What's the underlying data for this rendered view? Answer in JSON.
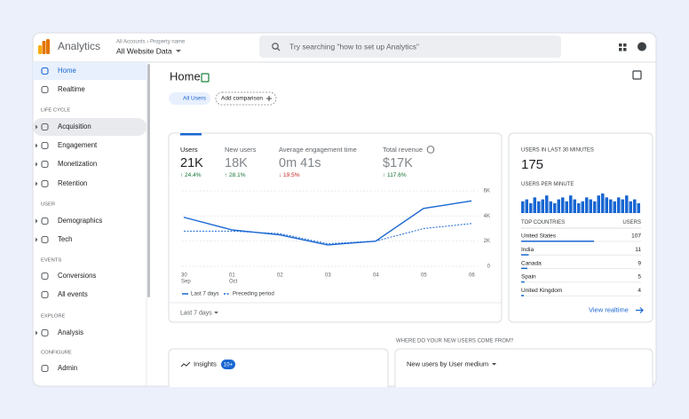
{
  "header": {
    "product": "Analytics",
    "breadcrumb": "All Accounts › Property name",
    "property": "All Website Data",
    "search_placeholder": "Try searching \"how to set up Analytics\""
  },
  "nav": [
    {
      "label": "Home"
    },
    {
      "label": "Realtime"
    },
    {
      "heading": "LIFE CYCLE"
    },
    {
      "label": "Acquisition",
      "expand": true
    },
    {
      "label": "Engagement",
      "expand": true
    },
    {
      "label": "Monetization",
      "expand": true
    },
    {
      "label": "Retention",
      "expand": true
    },
    {
      "heading": "USER"
    },
    {
      "label": "Demographics",
      "expand": true
    },
    {
      "label": "Tech",
      "expand": true
    },
    {
      "heading": "EVENTS"
    },
    {
      "label": "Conversions"
    },
    {
      "label": "All events"
    },
    {
      "heading": "EXPLORE"
    },
    {
      "label": "Analysis",
      "expand": true
    },
    {
      "heading": "CONFIGURE"
    },
    {
      "label": "Admin"
    }
  ],
  "page": {
    "title": "Home",
    "segment_badge": "A",
    "segment": "All Users",
    "add_comparison": "Add comparison",
    "date_selector": "Last 7 days"
  },
  "metrics": [
    {
      "label": "Users",
      "value": "21K",
      "change": "↑ 24.4%",
      "direction": "up"
    },
    {
      "label": "New users",
      "value": "18K",
      "change": "↑ 28.1%",
      "direction": "up"
    },
    {
      "label": "Average engagement time",
      "value": "0m 41s",
      "change": "↓ 19.5%",
      "direction": "down"
    },
    {
      "label": "Total revenue",
      "value": "$17K",
      "change": "↑ 117.6%",
      "direction": "up"
    }
  ],
  "chart_data": {
    "type": "line",
    "categories": [
      "30",
      "01",
      "02",
      "03",
      "04",
      "05",
      "06"
    ],
    "category_sublabels": [
      "Sep",
      "Oct",
      null,
      null,
      null,
      null,
      null
    ],
    "series": [
      {
        "name": "Last 7 days",
        "color": "#1967d2",
        "dashed": false,
        "values": [
          3900,
          2900,
          2500,
          1700,
          2000,
          4600,
          5200
        ]
      },
      {
        "name": "Preceding period",
        "color": "#1967d2",
        "dashed": true,
        "values": [
          2800,
          2800,
          2600,
          1800,
          2000,
          3000,
          3400
        ]
      }
    ],
    "ylim": [
      0,
      6000
    ],
    "yticks": [
      0,
      {
        "value": 2000,
        "label": "2K"
      },
      {
        "value": 4000,
        "label": "4K"
      },
      {
        "value": 6000,
        "label": "6K"
      }
    ],
    "grid": true
  },
  "realtime": {
    "title": "USERS IN LAST 30 MINUTES",
    "users": "175",
    "per_minute_title": "USERS PER MINUTE",
    "per_minute": [
      6,
      7,
      5,
      8,
      6,
      7,
      9,
      6,
      5,
      7,
      8,
      6,
      9,
      7,
      5,
      6,
      8,
      7,
      6,
      9,
      10,
      8,
      7,
      6,
      8,
      7,
      9,
      6,
      7,
      5
    ],
    "countries_header": "TOP COUNTRIES",
    "users_header": "USERS",
    "countries": [
      {
        "name": "United States",
        "users": 107
      },
      {
        "name": "India",
        "users": 11
      },
      {
        "name": "Canada",
        "users": 9
      },
      {
        "name": "Spain",
        "users": 5
      },
      {
        "name": "United Kingdom",
        "users": 4
      }
    ],
    "link": "View realtime"
  },
  "bottom": {
    "insights": "Insights",
    "insights_badge": "10+",
    "question": "WHERE DO YOUR NEW USERS COME FROM?",
    "card_title": "New users by User medium"
  }
}
